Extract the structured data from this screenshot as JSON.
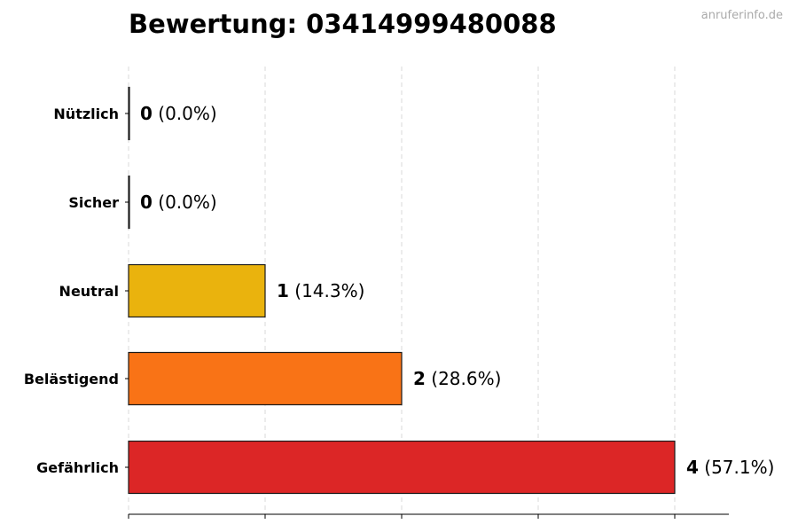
{
  "chart_data": {
    "type": "bar",
    "orientation": "horizontal",
    "title": "Bewertung: 03414999480088",
    "watermark": "anruferinfo.de",
    "categories": [
      "Nützlich",
      "Sicher",
      "Neutral",
      "Belästigend",
      "Gefährlich"
    ],
    "values": [
      0,
      0,
      1,
      2,
      4
    ],
    "percent_labels": [
      "(0.0%)",
      "(0.0%)",
      "(14.3%)",
      "(28.6%)",
      "(57.1%)"
    ],
    "colors": [
      "#2e9e44",
      "#3a7bd5",
      "#eab30d",
      "#f97316",
      "#dc2626"
    ],
    "xlim": [
      0,
      4.4
    ],
    "x_gridlines": [
      0,
      1,
      2,
      3,
      4
    ],
    "grid": "vertical dashed",
    "legend": "none"
  }
}
